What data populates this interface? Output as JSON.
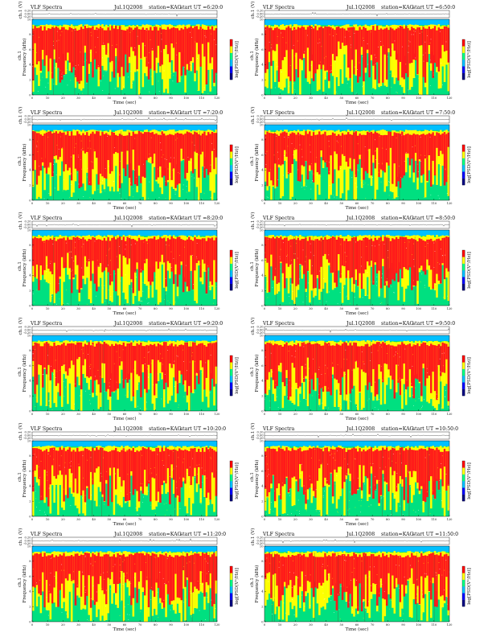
{
  "title_prefix": "VLF Spectra",
  "axis_labels": {
    "time": "Time (sec)",
    "freq": "Frequency (kHz)",
    "channel_small": "ch.1",
    "voltage": "ch.1 (V)",
    "colorbar": "log[PSD(V²/Hz)]"
  },
  "colors": {
    "background": "#00c0ff",
    "low": "#00e080",
    "mid": "#ffff00",
    "high": "#ff1a1a",
    "colorbar": [
      "#000080",
      "#0000ff",
      "#00c0ff",
      "#00ff80",
      "#ffff00",
      "#ff0000"
    ]
  },
  "chart_data": [
    {
      "type": "heatmap",
      "title": "VLF Spectra",
      "date": "Jul.1Q2008",
      "station": "station=KAG",
      "start": "start  UT  =6:20:0",
      "xlabel": "Time (sec)",
      "ylabel": "Frequency (kHz)",
      "xlim": [
        0,
        120
      ],
      "ylim": [
        0,
        10
      ],
      "x_ticks": [
        0,
        10,
        20,
        30,
        40,
        50,
        60,
        70,
        80,
        90,
        100,
        110,
        120
      ],
      "y_ticks": [
        0,
        2,
        4,
        6,
        8,
        10
      ],
      "v_ticks": [
        "0.20",
        "0.00",
        "-0.20"
      ]
    },
    {
      "type": "heatmap",
      "title": "VLF Spectra",
      "date": "Jul.1Q2008",
      "station": "station=KAG",
      "start": "start  UT  =6:50:0",
      "xlabel": "Time (sec)",
      "ylabel": "Frequency (kHz)",
      "xlim": [
        0,
        120
      ],
      "ylim": [
        0,
        10
      ],
      "x_ticks": [
        0,
        10,
        20,
        30,
        40,
        50,
        60,
        70,
        80,
        90,
        100,
        110,
        120
      ],
      "y_ticks": [
        0,
        2,
        4,
        6,
        8,
        10
      ],
      "v_ticks": [
        "0.20",
        "0.00",
        "-0.20"
      ]
    },
    {
      "type": "heatmap",
      "title": "VLF Spectra",
      "date": "Jul.1Q2008",
      "station": "station=KAG",
      "start": "start  UT  =7:20:0",
      "xlabel": "Time (sec)",
      "ylabel": "Frequency (kHz)",
      "xlim": [
        0,
        120
      ],
      "ylim": [
        0,
        10
      ],
      "x_ticks": [
        0,
        10,
        20,
        30,
        40,
        50,
        60,
        70,
        80,
        90,
        100,
        110,
        120
      ],
      "y_ticks": [
        0,
        2,
        4,
        6,
        8,
        10
      ],
      "v_ticks": [
        "0.20",
        "0.00",
        "-0.20"
      ]
    },
    {
      "type": "heatmap",
      "title": "VLF Spectra",
      "date": "Jul.1Q2008",
      "station": "station=KAG",
      "start": "start  UT  =7:50:0",
      "xlabel": "Time (sec)",
      "ylabel": "Frequency (kHz)",
      "xlim": [
        0,
        120
      ],
      "ylim": [
        0,
        10
      ],
      "x_ticks": [
        0,
        10,
        20,
        30,
        40,
        50,
        60,
        70,
        80,
        90,
        100,
        110,
        120
      ],
      "y_ticks": [
        0,
        2,
        4,
        6,
        8,
        10
      ],
      "v_ticks": [
        "0.20",
        "0.00",
        "-0.20"
      ]
    },
    {
      "type": "heatmap",
      "title": "VLF Spectra",
      "date": "Jul.1Q2008",
      "station": "station=KAG",
      "start": "start  UT  =8:20:0",
      "xlabel": "Time (sec)",
      "ylabel": "Frequency (kHz)",
      "xlim": [
        0,
        120
      ],
      "ylim": [
        0,
        10
      ],
      "x_ticks": [
        0,
        10,
        20,
        30,
        40,
        50,
        60,
        70,
        80,
        90,
        100,
        110,
        120
      ],
      "y_ticks": [
        0,
        2,
        4,
        6,
        8,
        10
      ],
      "v_ticks": [
        "0.20",
        "0.00",
        "-0.20"
      ]
    },
    {
      "type": "heatmap",
      "title": "VLF Spectra",
      "date": "Jul.1Q2008",
      "station": "station=KAG",
      "start": "start  UT  =8:50:0",
      "xlabel": "Time (sec)",
      "ylabel": "Frequency (kHz)",
      "xlim": [
        0,
        120
      ],
      "ylim": [
        0,
        10
      ],
      "x_ticks": [
        0,
        10,
        20,
        30,
        40,
        50,
        60,
        70,
        80,
        90,
        100,
        110,
        120
      ],
      "y_ticks": [
        0,
        2,
        4,
        6,
        8,
        10
      ],
      "v_ticks": [
        "0.20",
        "0.00",
        "-0.20"
      ]
    },
    {
      "type": "heatmap",
      "title": "VLF Spectra",
      "date": "Jul.1Q2008",
      "station": "station=KAG",
      "start": "start  UT  =9:20:0",
      "xlabel": "Time (sec)",
      "ylabel": "Frequency (kHz)",
      "xlim": [
        0,
        120
      ],
      "ylim": [
        0,
        10
      ],
      "x_ticks": [
        0,
        10,
        20,
        30,
        40,
        50,
        60,
        70,
        80,
        90,
        100,
        110,
        120
      ],
      "y_ticks": [
        0,
        2,
        4,
        6,
        8,
        10
      ],
      "v_ticks": [
        "0.20",
        "0.00",
        "-0.20"
      ]
    },
    {
      "type": "heatmap",
      "title": "VLF Spectra",
      "date": "Jul.1Q2008",
      "station": "station=KAG",
      "start": "start  UT  =9:50:0",
      "xlabel": "Time (sec)",
      "ylabel": "Frequency (kHz)",
      "xlim": [
        0,
        120
      ],
      "ylim": [
        0,
        10
      ],
      "x_ticks": [
        0,
        10,
        20,
        30,
        40,
        50,
        60,
        70,
        80,
        90,
        100,
        110,
        120
      ],
      "y_ticks": [
        0,
        2,
        4,
        6,
        8,
        10
      ],
      "v_ticks": [
        "0.20",
        "0.00",
        "-0.20"
      ]
    },
    {
      "type": "heatmap",
      "title": "VLF Spectra",
      "date": "Jul.1Q2008",
      "station": "station=KAG",
      "start": "start  UT  =10:20:0",
      "xlabel": "Time (sec)",
      "ylabel": "Frequency (kHz)",
      "xlim": [
        0,
        120
      ],
      "ylim": [
        0,
        10
      ],
      "x_ticks": [
        0,
        10,
        20,
        30,
        40,
        50,
        60,
        70,
        80,
        90,
        100,
        110,
        120
      ],
      "y_ticks": [
        0,
        2,
        4,
        6,
        8,
        10
      ],
      "v_ticks": [
        "0.20",
        "0.00",
        "-0.20"
      ]
    },
    {
      "type": "heatmap",
      "title": "VLF Spectra",
      "date": "Jul.1Q2008",
      "station": "station=KAG",
      "start": "start  UT  =10:50:0",
      "xlabel": "Time (sec)",
      "ylabel": "Frequency (kHz)",
      "xlim": [
        0,
        120
      ],
      "ylim": [
        0,
        10
      ],
      "x_ticks": [
        0,
        10,
        20,
        30,
        40,
        50,
        60,
        70,
        80,
        90,
        100,
        110,
        120
      ],
      "y_ticks": [
        0,
        2,
        4,
        6,
        8,
        10
      ],
      "v_ticks": [
        "0.20",
        "0.00",
        "-0.20"
      ]
    },
    {
      "type": "heatmap",
      "title": "VLF Spectra",
      "date": "Jul.1Q2008",
      "station": "station=KAG",
      "start": "start  UT  =11:20:0",
      "xlabel": "Time (sec)",
      "ylabel": "Frequency (kHz)",
      "xlim": [
        0,
        120
      ],
      "ylim": [
        0,
        10
      ],
      "x_ticks": [
        0,
        10,
        20,
        30,
        40,
        50,
        60,
        70,
        80,
        90,
        100,
        110,
        120
      ],
      "y_ticks": [
        0,
        2,
        4,
        6,
        8,
        10
      ],
      "v_ticks": [
        "0.20",
        "0.00",
        "-0.20"
      ]
    },
    {
      "type": "heatmap",
      "title": "VLF Spectra",
      "date": "Jul.1Q2008",
      "station": "station=KAG",
      "start": "start  UT  =11:50:0",
      "xlabel": "Time (sec)",
      "ylabel": "Frequency (kHz)",
      "xlim": [
        0,
        120
      ],
      "ylim": [
        0,
        10
      ],
      "x_ticks": [
        0,
        10,
        20,
        30,
        40,
        50,
        60,
        70,
        80,
        90,
        100,
        110,
        120
      ],
      "y_ticks": [
        0,
        2,
        4,
        6,
        8,
        10
      ],
      "v_ticks": [
        "0.20",
        "0.00",
        "-0.20"
      ]
    }
  ]
}
